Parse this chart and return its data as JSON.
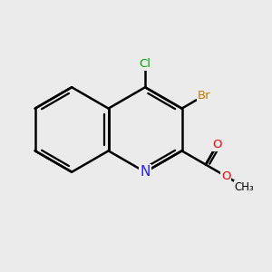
{
  "bg_color": "#ebebeb",
  "bond_color": "#000000",
  "bond_width": 1.8,
  "atom_colors": {
    "N": "#2020ff",
    "O": "#ff0000",
    "Br": "#cc7700",
    "Cl": "#00aa00",
    "C": "#000000"
  },
  "font_size": 9.5,
  "figsize": [
    3.0,
    3.0
  ],
  "dpi": 100
}
